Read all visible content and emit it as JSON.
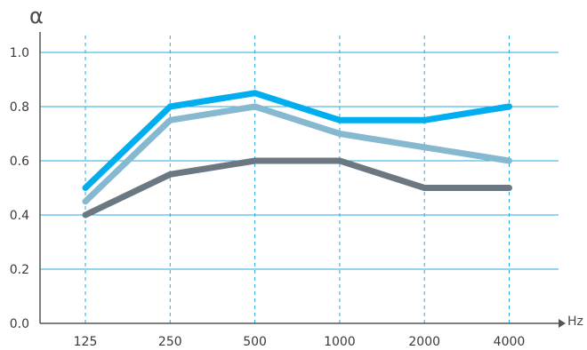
{
  "chart_data": {
    "type": "line",
    "ylabel": "α",
    "xlabel": "Hz",
    "categories": [
      "125",
      "250",
      "500",
      "1000",
      "2000",
      "4000"
    ],
    "ylim": [
      0,
      1.0
    ],
    "yticks": [
      "0.0",
      "0.2",
      "0.4",
      "0.6",
      "0.8",
      "1.0"
    ],
    "grid": {
      "horizontal": "solid",
      "vertical": "dashed"
    },
    "series": [
      {
        "values": [
          0.4,
          0.55,
          0.6,
          0.6,
          0.5,
          0.5
        ],
        "color": "#6b7882"
      },
      {
        "values": [
          0.45,
          0.75,
          0.8,
          0.7,
          0.65,
          0.6
        ],
        "color": "#86b8d0"
      },
      {
        "values": [
          0.5,
          0.8,
          0.85,
          0.75,
          0.75,
          0.8
        ],
        "color": "#00aeef"
      }
    ],
    "colors": {
      "grid": "#27aae1",
      "axis": "#555555"
    }
  }
}
